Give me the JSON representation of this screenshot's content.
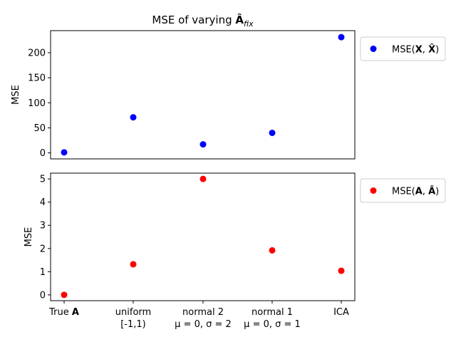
{
  "chart_data": [
    {
      "type": "scatter",
      "title": "MSE of varying Â_fix",
      "title_parts": {
        "prefix": "MSE of varying ",
        "symbol": "Â",
        "subscript": "fix"
      },
      "xlabel": "",
      "ylabel": "MSE",
      "categories": [
        "True A",
        "uniform [-1,1)",
        "normal 2 μ=0,σ=2",
        "normal 1 μ=0,σ=1",
        "ICA"
      ],
      "series": [
        {
          "name": "MSE(X, X̂)",
          "color": "#0000ff",
          "values": [
            1,
            71,
            17,
            40,
            231
          ]
        }
      ],
      "yticks": [
        0,
        50,
        100,
        150,
        200
      ],
      "ylim": [
        -12,
        244
      ],
      "xticks_shown": false,
      "legend": {
        "placement": "outside-right-top",
        "prefix": "MSE(",
        "bold1": "X",
        "mid": ", ",
        "hat2": "X̂",
        "suffix": ")"
      },
      "grid": false
    },
    {
      "type": "scatter",
      "title": "",
      "xlabel": "",
      "ylabel": "MSE",
      "categories": [
        "True A",
        "uniform [-1,1)",
        "normal 2 μ=0,σ=2",
        "normal 1 μ=0,σ=1",
        "ICA"
      ],
      "series": [
        {
          "name": "MSE(A, Â)",
          "color": "#ff0000",
          "values": [
            0,
            1.32,
            5.0,
            1.92,
            1.04
          ]
        }
      ],
      "yticks": [
        0,
        1,
        2,
        3,
        4,
        5
      ],
      "ylim": [
        -0.25,
        5.25
      ],
      "xticks_shown": true,
      "xtick_labels": [
        {
          "line1": "True ",
          "bold": "A",
          "line2": ""
        },
        {
          "line1": "uniform",
          "bold": "",
          "line2": "[-1,1)"
        },
        {
          "line1": "normal 2",
          "bold": "",
          "line2": "μ = 0, σ = 2"
        },
        {
          "line1": "normal 1",
          "bold": "",
          "line2": "μ = 0, σ = 1"
        },
        {
          "line1": "ICA",
          "bold": "",
          "line2": ""
        }
      ],
      "legend": {
        "placement": "outside-right-top",
        "prefix": "MSE(",
        "bold1": "A",
        "mid": ", ",
        "hat2": "Â",
        "suffix": ")"
      },
      "grid": false
    }
  ]
}
